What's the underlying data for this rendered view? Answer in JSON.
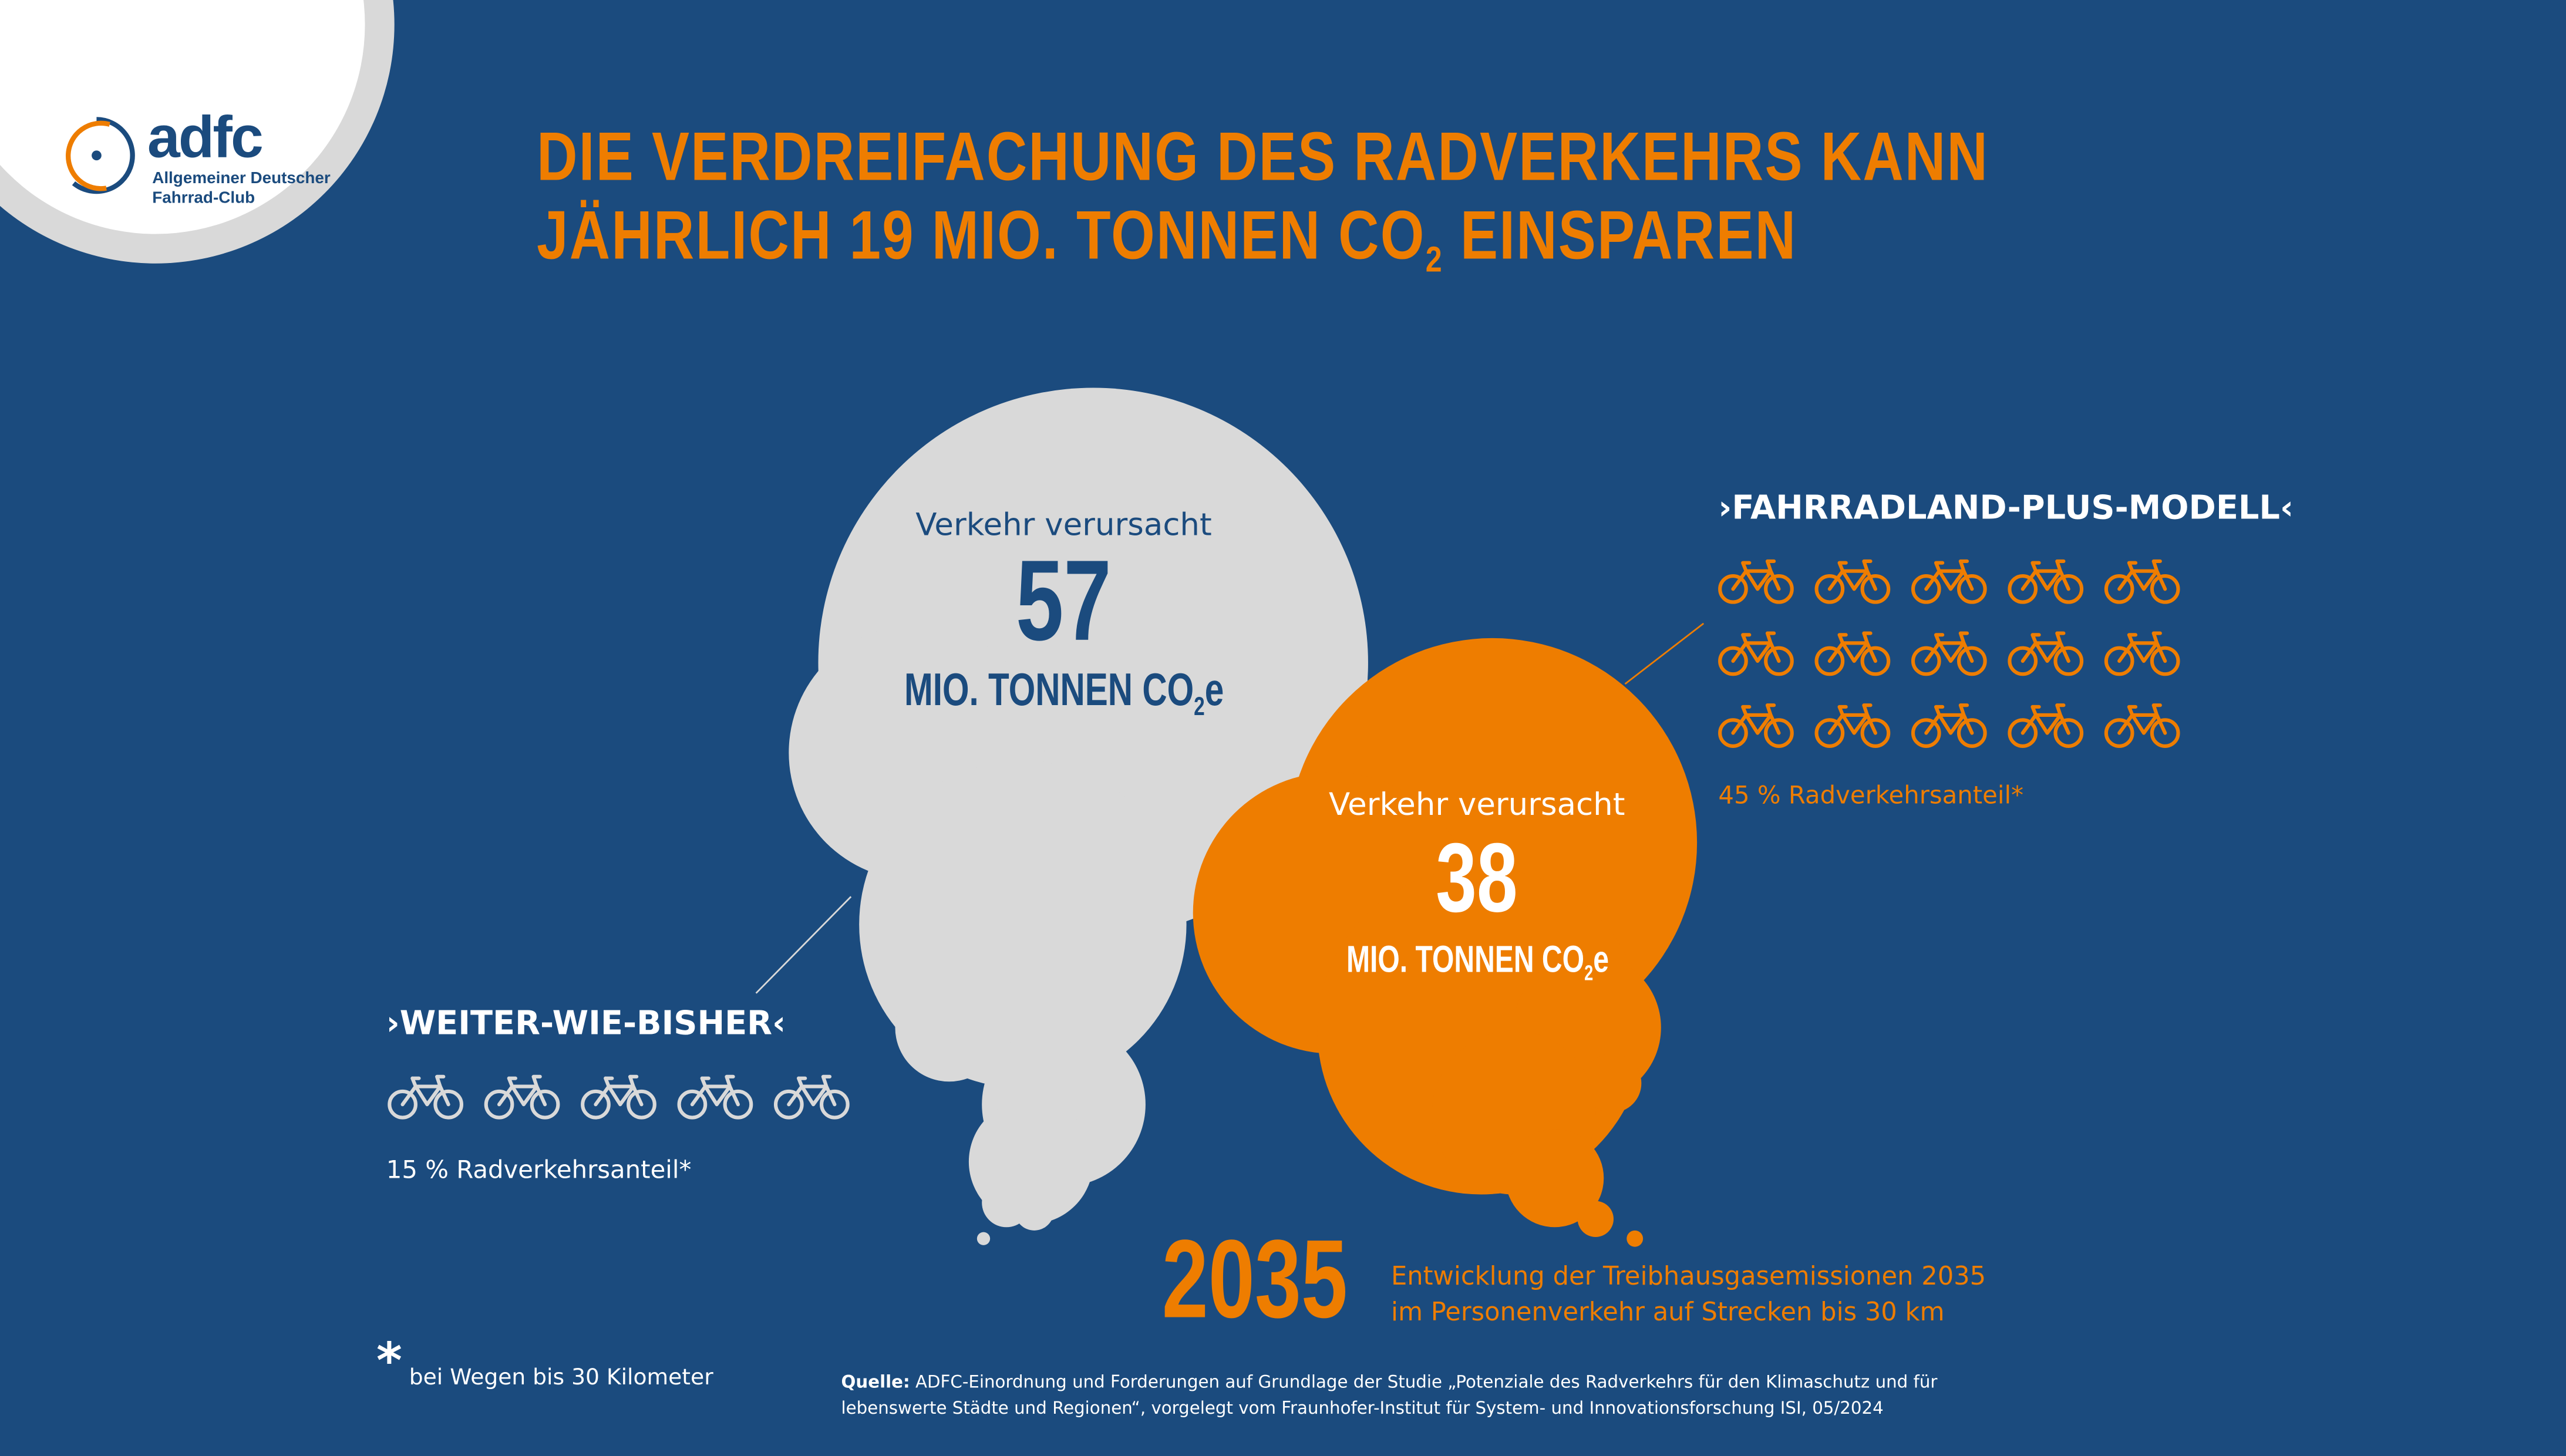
{
  "logo": {
    "wordmark": "adfc",
    "line1": "Allgemeiner Deutscher",
    "line2": "Fahrrad-Club"
  },
  "title": {
    "line1": "DIE VERDREIFACHUNG DES RADVERKEHRS KANN",
    "line2_pre": "JÄHRLICH 19 MIO. TONNEN CO",
    "line2_sub": "2",
    "line2_post": " EINSPAREN"
  },
  "grey_cloud": {
    "label": "Verkehr verursacht",
    "value": "57",
    "unit": "MIO. TONNEN CO",
    "unit_sub": "2",
    "unit_post": "e"
  },
  "orange_cloud": {
    "label": "Verkehr verursacht",
    "value": "38",
    "unit": "MIO. TONNEN CO",
    "unit_sub": "2",
    "unit_post": "e"
  },
  "scenario_bau": {
    "name": "›WEITER-WIE-BISHER‹",
    "bike_count": 5,
    "share": "15 % Radverkehrsanteil*"
  },
  "scenario_plus": {
    "name": "›FAHRRADLAND-PLUS-MODELL‹",
    "bike_count": 15,
    "share": "45 % Radverkehrsanteil*"
  },
  "year": "2035",
  "year_caption": {
    "line1": "Entwicklung der Treibhausgasemissionen 2035",
    "line2": "im Personenverkehr auf Strecken bis 30 km"
  },
  "footnote": {
    "mark": "*",
    "text": "bei Wegen bis 30 Kilometer"
  },
  "source": {
    "label": "Quelle:",
    "line1": " ADFC-Einordnung und Forderungen auf Grundlage der Studie „Potenziale des Radverkehrs für den Klimaschutz und für",
    "line2": "lebenswerte Städte und Regionen“, vorgelegt vom Fraunhofer-Institut für System- und Innovationsforschung ISI, 05/2024"
  },
  "colors": {
    "background": "#1b4b7e",
    "orange": "#ee7d00",
    "grey": "#d9d9d9",
    "white": "#ffffff"
  }
}
